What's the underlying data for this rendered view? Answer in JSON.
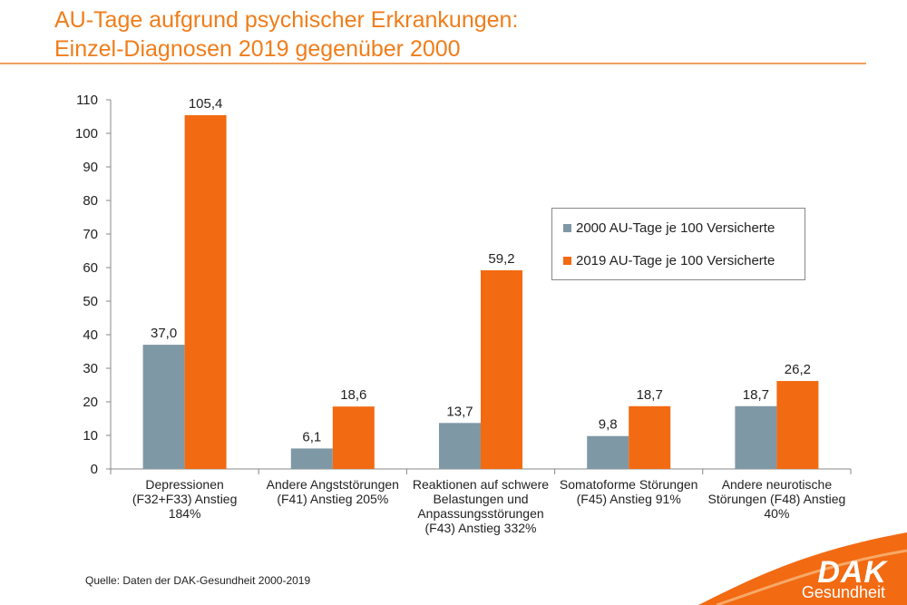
{
  "title_line1": "AU-Tage aufgrund psychischer Erkrankungen:",
  "title_line2": "Einzel-Diagnosen 2019 gegenüber 2000",
  "source": "Quelle: Daten der DAK-Gesundheit 2000-2019",
  "logo": {
    "name": "DAK",
    "sub": "Gesundheit"
  },
  "colors": {
    "series_2000": "#7f98a6",
    "series_2019": "#f26a12",
    "title": "#f07d1a"
  },
  "chart_data": {
    "type": "bar",
    "categories": [
      [
        "Depressionen",
        "(F32+F33) Anstieg",
        "184%"
      ],
      [
        "Andere Angststörungen",
        "(F41) Anstieg 205%"
      ],
      [
        "Reaktionen auf schwere",
        "Belastungen und",
        "Anpassungsstörungen",
        "(F43) Anstieg 332%"
      ],
      [
        "Somatoforme Störungen",
        "(F45) Anstieg 91%"
      ],
      [
        "Andere neurotische",
        "Störungen (F48) Anstieg",
        "40%"
      ]
    ],
    "series": [
      {
        "name": "2000 AU-Tage je 100 Versicherte",
        "values": [
          37.0,
          6.1,
          13.7,
          9.8,
          18.7
        ],
        "labels": [
          "37,0",
          "6,1",
          "13,7",
          "9,8",
          "18,7"
        ]
      },
      {
        "name": "2019 AU-Tage je 100 Versicherte",
        "values": [
          105.4,
          18.6,
          59.2,
          18.7,
          26.2
        ],
        "labels": [
          "105,4",
          "18,6",
          "59,2",
          "18,7",
          "26,2"
        ]
      }
    ],
    "yticks": [
      "0",
      "10",
      "20",
      "30",
      "40",
      "50",
      "60",
      "70",
      "80",
      "90",
      "100",
      "110"
    ],
    "ylim": [
      0,
      110
    ],
    "grid": false,
    "legend_position": "right"
  }
}
